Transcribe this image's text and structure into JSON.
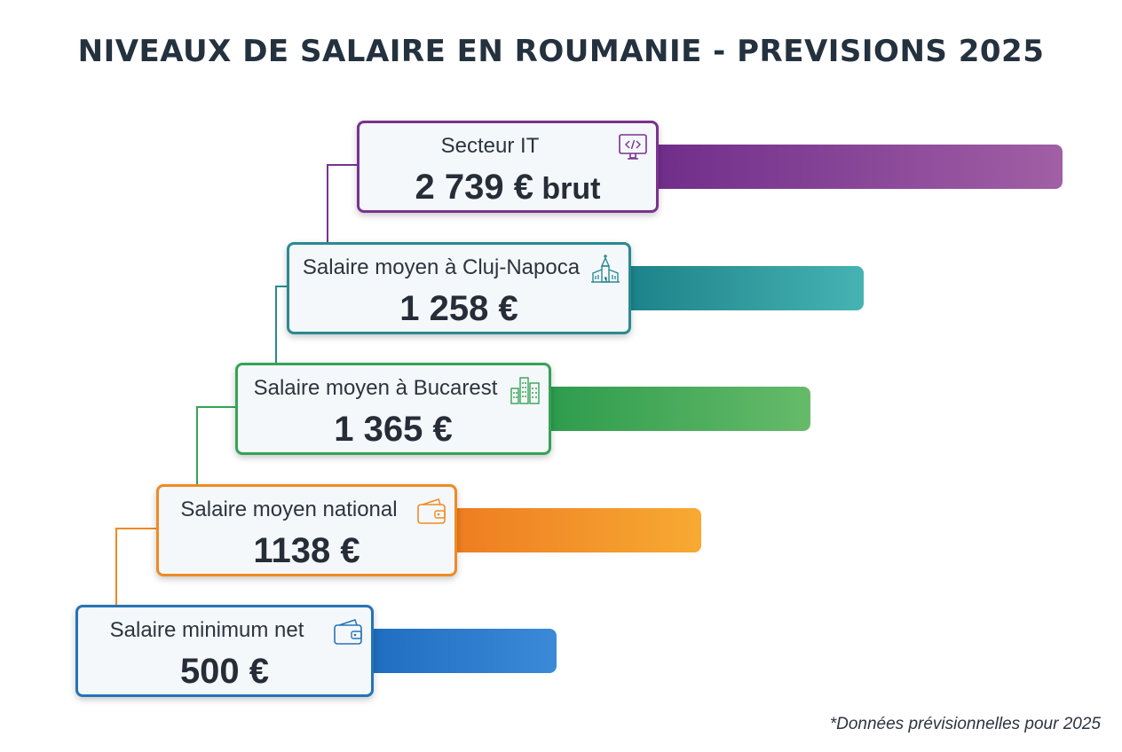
{
  "title": "NIVEAUX DE SALAIRE EN ROUMANIE - PREVISIONS 2025",
  "footnote": "*Données prévisionnelles pour 2025",
  "chart_data": {
    "type": "bar",
    "title": "NIVEAUX DE SALAIRE EN ROUMANIE - PREVISIONS 2025",
    "unit": "€",
    "categories": [
      "Secteur IT",
      "Salaire moyen à Cluj-Napoca",
      "Salaire moyen à Bucarest",
      "Salaire moyen national",
      "Salaire minimum net"
    ],
    "values": [
      2739,
      1258,
      1365,
      1138,
      500
    ],
    "value_labels": [
      "2 739 €",
      "1 258 €",
      "1 365 €",
      "1138 €",
      "500 €"
    ],
    "value_suffixes": [
      "brut",
      "",
      "",
      "",
      ""
    ],
    "icons": [
      "computer-code-icon",
      "church-icon",
      "city-buildings-icon",
      "wallet-icon",
      "wallet-icon"
    ],
    "colors": [
      [
        "#6e2c8a",
        "#a15fa5"
      ],
      [
        "#1a7f87",
        "#46b3b3"
      ],
      [
        "#2a9a4b",
        "#66bb6a"
      ],
      [
        "#ee7a20",
        "#f7aa33"
      ],
      [
        "#1c6bbf",
        "#3b8ad8"
      ]
    ],
    "border_colors": [
      "#7a3290",
      "#2a8a92",
      "#35a356",
      "#ef8a24",
      "#2474b8"
    ],
    "icon_colors": [
      "#7a3290",
      "#2a8a92",
      "#35a356",
      "#ef8a24",
      "#2474b8"
    ]
  }
}
